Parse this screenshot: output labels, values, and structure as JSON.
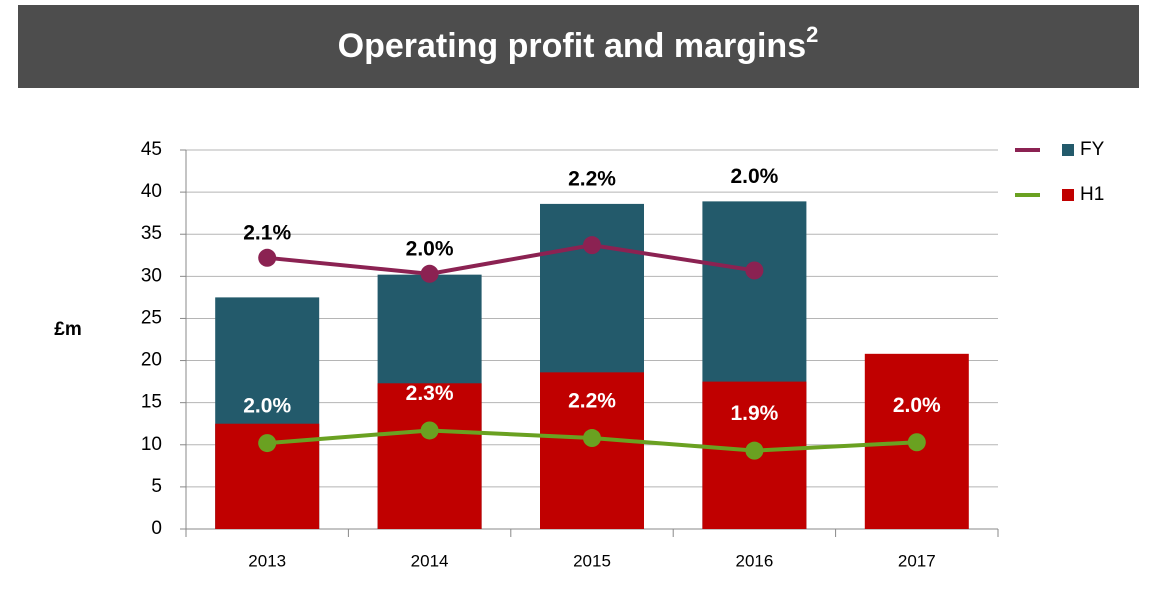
{
  "chart_data": {
    "type": "bar_line",
    "title": "Operating profit and margins",
    "title_superscript": "2",
    "y_label": "£m",
    "categories": [
      "2013",
      "2014",
      "2015",
      "2016",
      "2017"
    ],
    "ylim": [
      0,
      45
    ],
    "yticks": [
      0,
      5,
      10,
      15,
      20,
      25,
      30,
      35,
      40,
      45
    ],
    "grid": true,
    "legend": "right",
    "series": [
      {
        "name": "FY",
        "color": "#235a6b",
        "line_color": "#8b2252",
        "values": [
          27.5,
          30.2,
          38.6,
          38.9,
          null
        ],
        "line_values": [
          32.2,
          30.3,
          33.7,
          30.7,
          null
        ],
        "line_labels": [
          "2.1%",
          "2.0%",
          "2.2%",
          "2.0%",
          null
        ]
      },
      {
        "name": "H1",
        "color": "#c00000",
        "line_color": "#6aa121",
        "values": [
          12.5,
          17.3,
          18.6,
          17.5,
          20.8
        ],
        "line_values": [
          10.2,
          11.7,
          10.8,
          9.3,
          10.3
        ],
        "line_labels": [
          "2.0%",
          "2.3%",
          "2.2%",
          "1.9%",
          "2.0%"
        ]
      }
    ]
  }
}
